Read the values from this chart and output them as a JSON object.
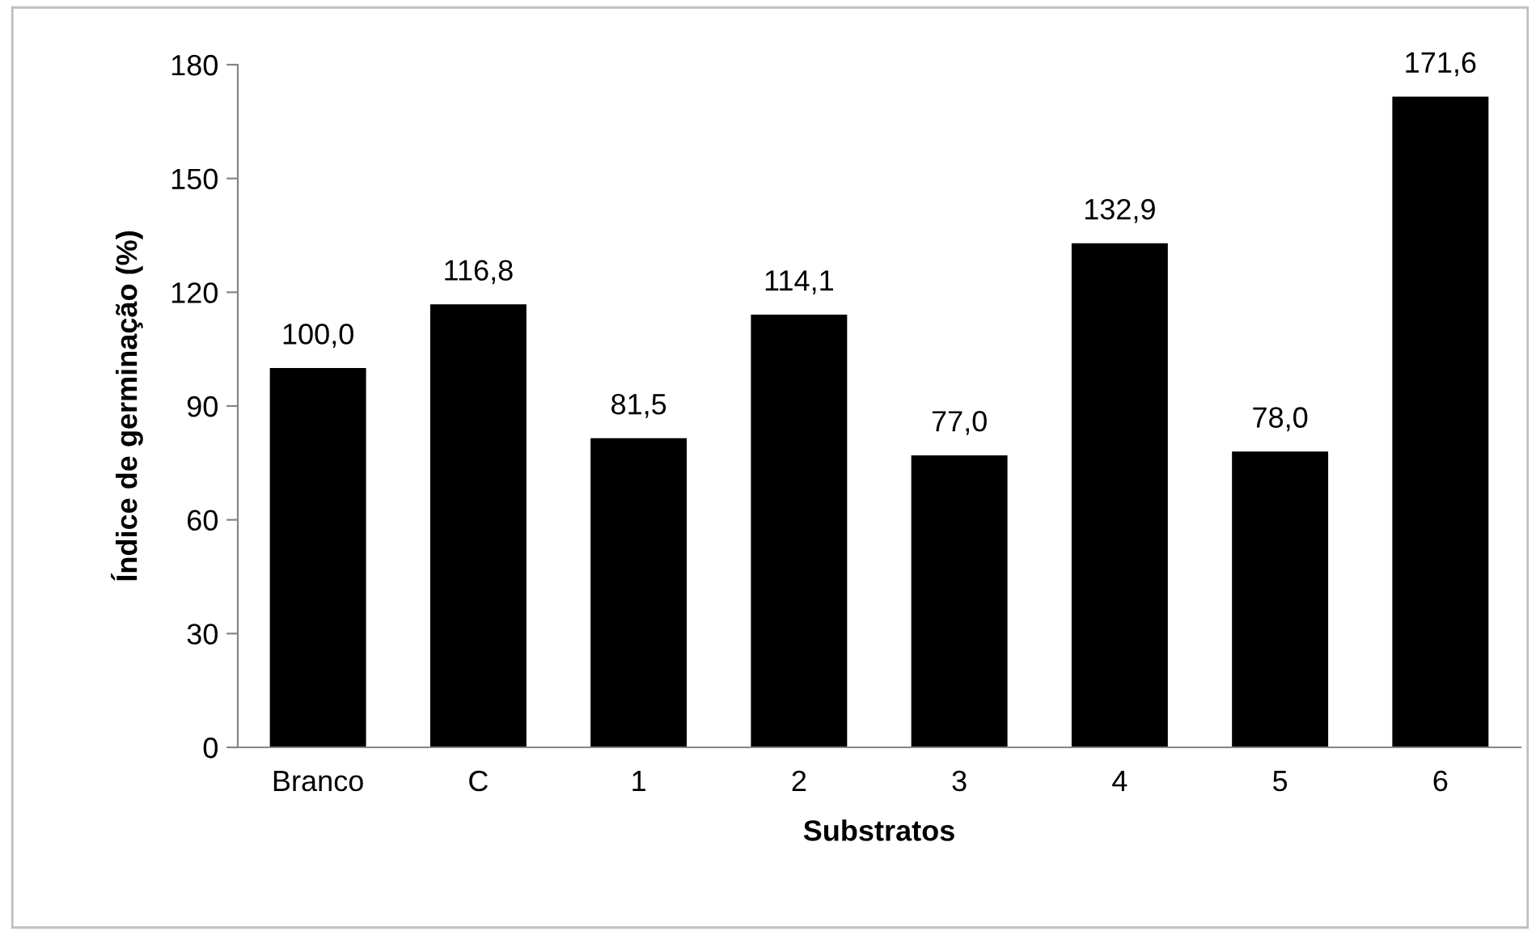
{
  "chart_data": {
    "type": "bar",
    "xlabel": "Substratos",
    "ylabel": "Índice de germinação (%)",
    "categories": [
      "Branco",
      "C",
      "1",
      "2",
      "3",
      "4",
      "5",
      "6"
    ],
    "values": [
      100.0,
      116.8,
      81.5,
      114.1,
      77.0,
      132.9,
      78.0,
      171.6
    ],
    "value_labels": [
      "100,0",
      "116,8",
      "81,5",
      "114,1",
      "77,0",
      "132,9",
      "78,0",
      "171,6"
    ],
    "color": "#000000",
    "ylim": [
      0,
      180
    ],
    "yticks": [
      0,
      30,
      60,
      90,
      120,
      150,
      180
    ],
    "grid": false,
    "legend": false
  }
}
